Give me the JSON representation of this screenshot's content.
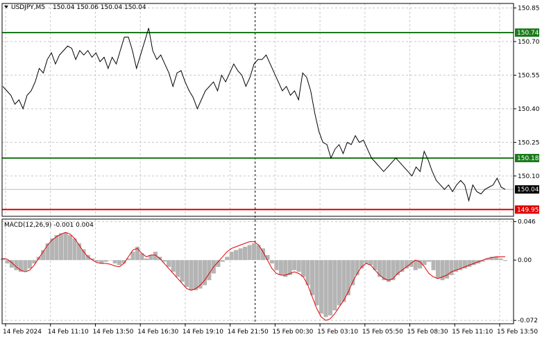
{
  "header": {
    "symbol_label": "USDJPY,M5",
    "ohlc_text": "150.04 150.06 150.04 150.04",
    "macd_label": "MACD(12,26,9) -0.001 0.004"
  },
  "colors": {
    "background": "#ffffff",
    "price_line": "#000000",
    "grid": "#c8c8c8",
    "green_level": "#1a7a1a",
    "red_level": "#e00000",
    "current_price": "#bdbdbd",
    "histogram": "#b4b4b4",
    "signal_line": "#e00000",
    "session_divider": "#000000"
  },
  "chart_data": [
    {
      "type": "line",
      "title": "USDJPY,M5",
      "ylim": [
        149.92,
        150.87
      ],
      "y_ticks": [
        "150.85",
        "150.70",
        "150.55",
        "150.40",
        "150.25",
        "150.10"
      ],
      "y_tick_values": [
        150.85,
        150.7,
        150.55,
        150.4,
        150.25,
        150.1
      ],
      "x_tick_labels": [
        "14 Feb 2024",
        "14 Feb 11:10",
        "14 Feb 13:50",
        "14 Feb 16:30",
        "14 Feb 19:10",
        "14 Feb 21:50",
        "15 Feb 00:30",
        "15 Feb 03:10",
        "15 Feb 05:50",
        "15 Feb 08:30",
        "15 Feb 11:10",
        "15 Feb 13:50"
      ],
      "grid": true,
      "series": [
        {
          "values": [
            150.5,
            150.48,
            150.46,
            150.42,
            150.44,
            150.4,
            150.46,
            150.48,
            150.52,
            150.58,
            150.56,
            150.62,
            150.65,
            150.6,
            150.64,
            150.66,
            150.68,
            150.67,
            150.62,
            150.66,
            150.64,
            150.66,
            150.63,
            150.65,
            150.61,
            150.63,
            150.58,
            150.63,
            150.6,
            150.66,
            150.72,
            150.72,
            150.66,
            150.58,
            150.64,
            150.7,
            150.76,
            150.66,
            150.62,
            150.64,
            150.6,
            150.56,
            150.5,
            150.56,
            150.57,
            150.52,
            150.48,
            150.45,
            150.4,
            150.44,
            150.48,
            150.5,
            150.52,
            150.48,
            150.55,
            150.52,
            150.56,
            150.6,
            150.57,
            150.55,
            150.5,
            150.54,
            150.6,
            150.62,
            150.62,
            150.64,
            150.6,
            150.56,
            150.52,
            150.48,
            150.5,
            150.46,
            150.48,
            150.44,
            150.56,
            150.54,
            150.48,
            150.38,
            150.3,
            150.25,
            150.24,
            150.18,
            150.22,
            150.24,
            150.2,
            150.25,
            150.24,
            150.28,
            150.25,
            150.26,
            150.22,
            150.18,
            150.16,
            150.14,
            150.12,
            150.14,
            150.16,
            150.18,
            150.16,
            150.14,
            150.12,
            150.1,
            150.14,
            150.12,
            150.21,
            150.17,
            150.12,
            150.08,
            150.06,
            150.04,
            150.06,
            150.03,
            150.06,
            150.08,
            150.06,
            149.99,
            150.06,
            150.03,
            150.02,
            150.04,
            150.05,
            150.06,
            150.09,
            150.05,
            150.04
          ]
        }
      ],
      "levels": [
        {
          "value": 150.74,
          "label": "150.74",
          "color": "#1a7a1a"
        },
        {
          "value": 150.18,
          "label": "150.18",
          "color": "#1a7a1a"
        },
        {
          "value": 149.95,
          "label": "149.95",
          "color": "#e00000"
        }
      ],
      "current_price": {
        "value": 150.04,
        "label": "150.04"
      }
    },
    {
      "type": "bar",
      "title": "MACD(12,26,9)",
      "ylim": [
        -0.076,
        0.049
      ],
      "y_ticks": [
        "0.046",
        "0.00",
        "-0.072"
      ],
      "y_tick_values": [
        0.046,
        0.0,
        -0.072
      ],
      "series": [
        {
          "name": "MACD",
          "values": [
            0.002,
            -0.004,
            -0.009,
            -0.012,
            -0.014,
            -0.013,
            -0.01,
            -0.004,
            0.004,
            0.012,
            0.02,
            0.026,
            0.03,
            0.032,
            0.033,
            0.03,
            0.026,
            0.02,
            0.013,
            0.006,
            0.002,
            -0.002,
            -0.004,
            -0.002,
            0.0,
            -0.004,
            -0.006,
            -0.004,
            0.002,
            0.01,
            0.016,
            0.008,
            0.002,
            0.006,
            0.01,
            0.004,
            -0.002,
            -0.008,
            -0.014,
            -0.02,
            -0.026,
            -0.032,
            -0.036,
            -0.036,
            -0.034,
            -0.03,
            -0.024,
            -0.016,
            -0.008,
            -0.002,
            0.004,
            0.01,
            0.012,
            0.014,
            0.016,
            0.018,
            0.02,
            0.018,
            0.014,
            0.006,
            -0.004,
            -0.012,
            -0.018,
            -0.02,
            -0.018,
            -0.012,
            -0.014,
            -0.02,
            -0.03,
            -0.042,
            -0.054,
            -0.064,
            -0.068,
            -0.066,
            -0.06,
            -0.054,
            -0.05,
            -0.042,
            -0.03,
            -0.018,
            -0.01,
            -0.004,
            -0.006,
            -0.012,
            -0.02,
            -0.024,
            -0.026,
            -0.024,
            -0.018,
            -0.014,
            -0.01,
            -0.008,
            -0.012,
            -0.01,
            -0.006,
            -0.002,
            -0.012,
            -0.022,
            -0.024,
            -0.022,
            -0.018,
            -0.014,
            -0.012,
            -0.01,
            -0.008,
            -0.006,
            -0.004,
            -0.002,
            0.002,
            0.004,
            0.004,
            0.002,
            -0.001
          ]
        },
        {
          "name": "Signal",
          "values": [
            0.002,
            0.001,
            -0.003,
            -0.008,
            -0.012,
            -0.014,
            -0.012,
            -0.006,
            0.002,
            0.01,
            0.018,
            0.024,
            0.028,
            0.031,
            0.033,
            0.031,
            0.026,
            0.018,
            0.01,
            0.004,
            0.0,
            -0.003,
            -0.004,
            -0.004,
            -0.005,
            -0.007,
            -0.008,
            -0.004,
            0.004,
            0.012,
            0.014,
            0.008,
            0.004,
            0.006,
            0.006,
            0.002,
            -0.004,
            -0.01,
            -0.016,
            -0.022,
            -0.028,
            -0.034,
            -0.036,
            -0.034,
            -0.03,
            -0.024,
            -0.016,
            -0.008,
            -0.002,
            0.004,
            0.01,
            0.014,
            0.016,
            0.018,
            0.02,
            0.022,
            0.022,
            0.018,
            0.01,
            0.0,
            -0.01,
            -0.016,
            -0.018,
            -0.018,
            -0.016,
            -0.014,
            -0.016,
            -0.02,
            -0.03,
            -0.044,
            -0.058,
            -0.068,
            -0.072,
            -0.07,
            -0.064,
            -0.056,
            -0.048,
            -0.038,
            -0.026,
            -0.016,
            -0.008,
            -0.004,
            -0.006,
            -0.012,
            -0.018,
            -0.022,
            -0.024,
            -0.022,
            -0.016,
            -0.012,
            -0.008,
            -0.004,
            0.0,
            -0.002,
            -0.008,
            -0.016,
            -0.02,
            -0.022,
            -0.02,
            -0.018,
            -0.014,
            -0.012,
            -0.01,
            -0.008,
            -0.006,
            -0.004,
            -0.002,
            0.0,
            0.002,
            0.003,
            0.004,
            0.004,
            0.004
          ]
        }
      ]
    }
  ]
}
